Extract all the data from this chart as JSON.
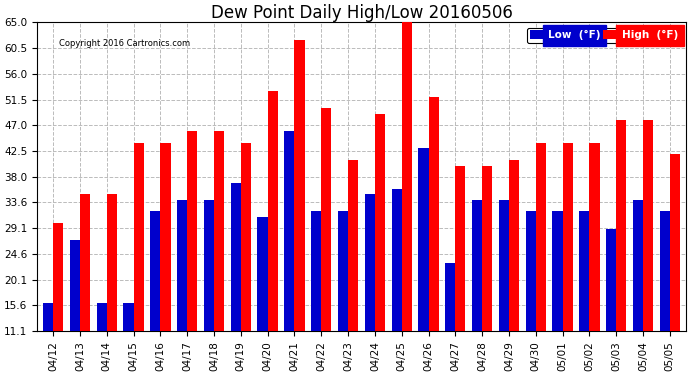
{
  "title": "Dew Point Daily High/Low 20160506",
  "copyright": "Copyright 2016 Cartronics.com",
  "dates": [
    "04/12",
    "04/13",
    "04/14",
    "04/15",
    "04/16",
    "04/17",
    "04/18",
    "04/19",
    "04/20",
    "04/21",
    "04/22",
    "04/23",
    "04/24",
    "04/25",
    "04/26",
    "04/27",
    "04/28",
    "04/29",
    "04/30",
    "05/01",
    "05/02",
    "05/03",
    "05/04",
    "05/05"
  ],
  "high": [
    30,
    35,
    35,
    44,
    44,
    46,
    46,
    44,
    53,
    62,
    50,
    41,
    49,
    65,
    52,
    40,
    40,
    41,
    44,
    44,
    44,
    48,
    48,
    42
  ],
  "low": [
    16,
    27,
    16,
    16,
    32,
    34,
    34,
    37,
    31,
    46,
    32,
    32,
    35,
    36,
    43,
    23,
    34,
    34,
    32,
    32,
    32,
    29,
    34,
    32
  ],
  "high_color": "#ff0000",
  "low_color": "#0000cc",
  "bg_color": "#ffffff",
  "grid_color": "#bbbbbb",
  "ylim_min": 11.1,
  "ylim_max": 65.0,
  "yticks": [
    11.1,
    15.6,
    20.1,
    24.6,
    29.1,
    33.6,
    38.0,
    42.5,
    47.0,
    51.5,
    56.0,
    60.5,
    65.0
  ],
  "bar_width": 0.38,
  "title_fontsize": 12,
  "tick_fontsize": 7.5,
  "legend_fontsize": 7.5,
  "legend_label_low": "Low  (°F)",
  "legend_label_high": "High  (°F)"
}
